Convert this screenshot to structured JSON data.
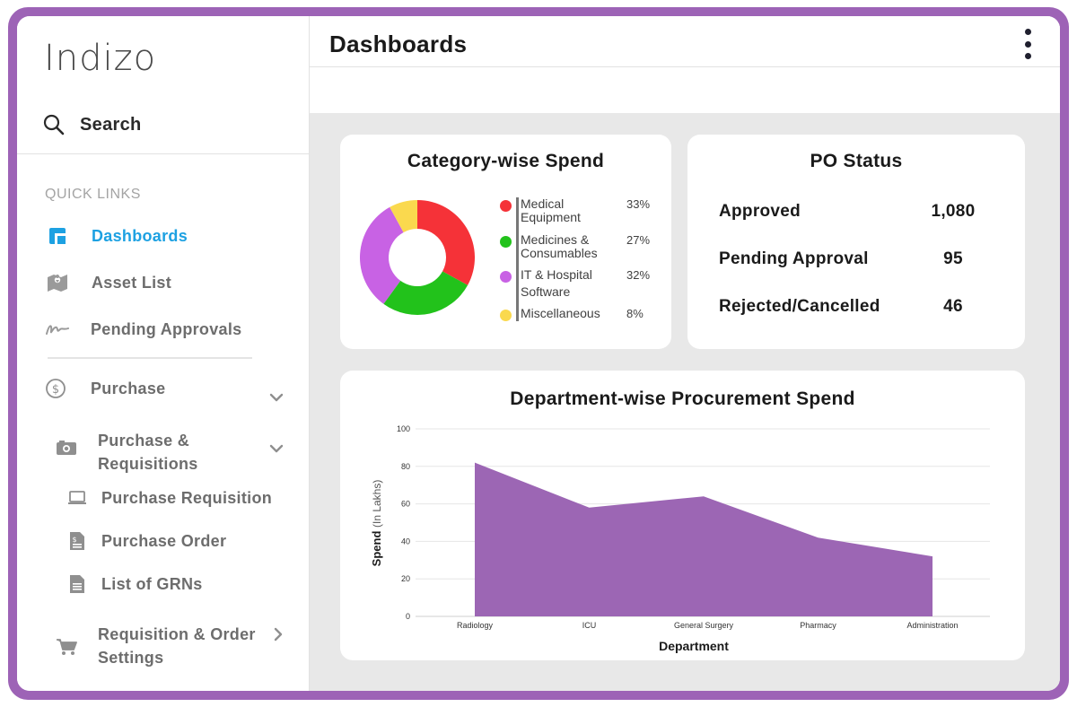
{
  "app": {
    "logo": "Indizo"
  },
  "sidebar": {
    "search_label": "Search",
    "quick_links_heading": "QUICK LINKS",
    "items": [
      {
        "label": "Dashboards",
        "icon": "dashboard-icon"
      },
      {
        "label": "Asset List",
        "icon": "map-icon"
      },
      {
        "label": "Pending Approvals",
        "icon": "signature-icon"
      },
      {
        "label": "Purchase",
        "icon": "dollar-circle-icon"
      },
      {
        "label": "Purchase & Requisitions",
        "icon": "camera-icon"
      },
      {
        "label": "Purchase Requisition",
        "icon": "laptop-icon"
      },
      {
        "label": "Purchase Order",
        "icon": "invoice-icon"
      },
      {
        "label": "List of GRNs",
        "icon": "document-icon"
      },
      {
        "label": "Requisition & Order Settings",
        "icon": "cart-icon"
      }
    ]
  },
  "header": {
    "title": "Dashboards"
  },
  "category_card": {
    "title": "Category-wise Spend",
    "legend": [
      {
        "label": "Medical Equipment",
        "pct": "33%",
        "color": "#f53238"
      },
      {
        "label": "Medicines & Consumables",
        "pct": "27%",
        "color": "#22c21b"
      },
      {
        "label": "IT & Hospital Software",
        "pct": "32%",
        "color": "#c862e4"
      },
      {
        "label": "Miscellaneous",
        "pct": "8%",
        "color": "#fad94e"
      }
    ]
  },
  "po_card": {
    "title": "PO Status",
    "rows": [
      {
        "label": "Approved",
        "value": "1,080"
      },
      {
        "label": "Pending Approval",
        "value": "95"
      },
      {
        "label": "Rejected/Cancelled",
        "value": "46"
      }
    ]
  },
  "chart_data": [
    {
      "type": "pie",
      "title": "Category-wise Spend",
      "categories": [
        "Medical Equipment",
        "Medicines & Consumables",
        "IT & Hospital Software",
        "Miscellaneous"
      ],
      "values": [
        33,
        27,
        32,
        8
      ],
      "colors": [
        "#f53238",
        "#22c21b",
        "#c862e4",
        "#fad94e"
      ]
    },
    {
      "type": "area",
      "title": "Department-wise Procurement Spend",
      "categories": [
        "Radiology",
        "ICU",
        "General Surgery",
        "Pharmacy",
        "Administration"
      ],
      "values": [
        82,
        58,
        64,
        42,
        32
      ],
      "xlabel": "Department",
      "ylabel": "Spend",
      "ylabel_suffix": "(In Lakhs)",
      "ylim": [
        0,
        100
      ],
      "yticks": [
        0,
        20,
        40,
        60,
        80,
        100
      ],
      "color": "#9c66b4",
      "grid": true
    }
  ]
}
